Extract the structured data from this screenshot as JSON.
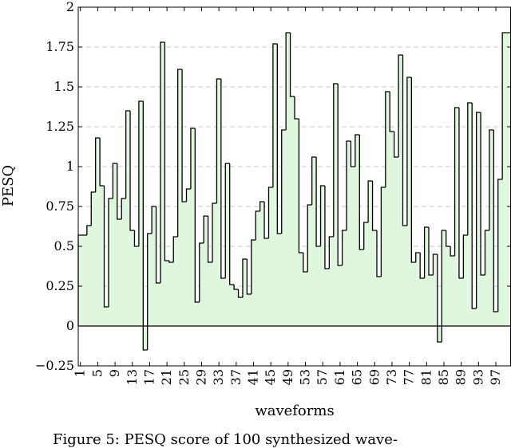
{
  "chart_data": {
    "type": "bar",
    "style": "step-histogram",
    "xlabel": "waveforms",
    "ylabel": "PESQ",
    "ylim": [
      -0.25,
      2
    ],
    "yticks": [
      -0.25,
      0,
      0.25,
      0.5,
      0.75,
      1,
      1.25,
      1.5,
      1.75,
      2
    ],
    "ytick_labels": [
      "−0.25",
      "0",
      "0.25",
      "0.5",
      "0.75",
      "1",
      "1.25",
      "1.5",
      "1.75",
      "2"
    ],
    "xticks": [
      1,
      5,
      9,
      13,
      17,
      21,
      25,
      29,
      33,
      37,
      41,
      45,
      49,
      53,
      57,
      61,
      65,
      69,
      73,
      77,
      81,
      85,
      89,
      93,
      97
    ],
    "xlim": [
      0.5,
      100.5
    ],
    "grid": "horizontal-dashed",
    "fill_color": "#dff7dc",
    "line_color": "#000000",
    "x": [
      1,
      2,
      3,
      4,
      5,
      6,
      7,
      8,
      9,
      10,
      11,
      12,
      13,
      14,
      15,
      16,
      17,
      18,
      19,
      20,
      21,
      22,
      23,
      24,
      25,
      26,
      27,
      28,
      29,
      30,
      31,
      32,
      33,
      34,
      35,
      36,
      37,
      38,
      39,
      40,
      41,
      42,
      43,
      44,
      45,
      46,
      47,
      48,
      49,
      50,
      51,
      52,
      53,
      54,
      55,
      56,
      57,
      58,
      59,
      60,
      61,
      62,
      63,
      64,
      65,
      66,
      67,
      68,
      69,
      70,
      71,
      72,
      73,
      74,
      75,
      76,
      77,
      78,
      79,
      80,
      81,
      82,
      83,
      84,
      85,
      86,
      87,
      88,
      89,
      90,
      91,
      92,
      93,
      94,
      95,
      96,
      97,
      98,
      99,
      100
    ],
    "values": [
      0.57,
      0.57,
      0.63,
      0.84,
      1.18,
      0.88,
      0.12,
      0.8,
      1.02,
      0.67,
      0.8,
      1.35,
      0.6,
      0.5,
      1.41,
      -0.15,
      0.58,
      0.75,
      0.27,
      1.78,
      0.41,
      0.4,
      0.56,
      1.61,
      0.78,
      0.86,
      1.24,
      0.15,
      0.52,
      0.69,
      0.4,
      0.77,
      1.55,
      0.3,
      1.02,
      0.26,
      0.23,
      0.18,
      0.42,
      0.2,
      0.54,
      0.72,
      0.78,
      0.55,
      0.87,
      1.77,
      0.58,
      1.23,
      1.84,
      1.44,
      1.3,
      0.46,
      0.34,
      0.76,
      1.06,
      0.5,
      0.88,
      0.36,
      0.56,
      1.52,
      0.38,
      0.6,
      1.16,
      1.0,
      1.2,
      0.48,
      0.65,
      0.91,
      0.6,
      0.31,
      0.87,
      1.47,
      1.22,
      1.06,
      1.7,
      0.63,
      1.56,
      0.4,
      0.46,
      0.3,
      0.62,
      0.32,
      0.45,
      -0.1,
      0.6,
      0.5,
      0.44,
      1.37,
      0.3,
      0.57,
      1.4,
      0.11,
      1.34,
      0.32,
      0.6,
      1.23,
      0.09,
      0.92,
      1.84,
      1.84
    ]
  },
  "caption": "Figure 5: PESQ score of 100 synthesized wave-"
}
